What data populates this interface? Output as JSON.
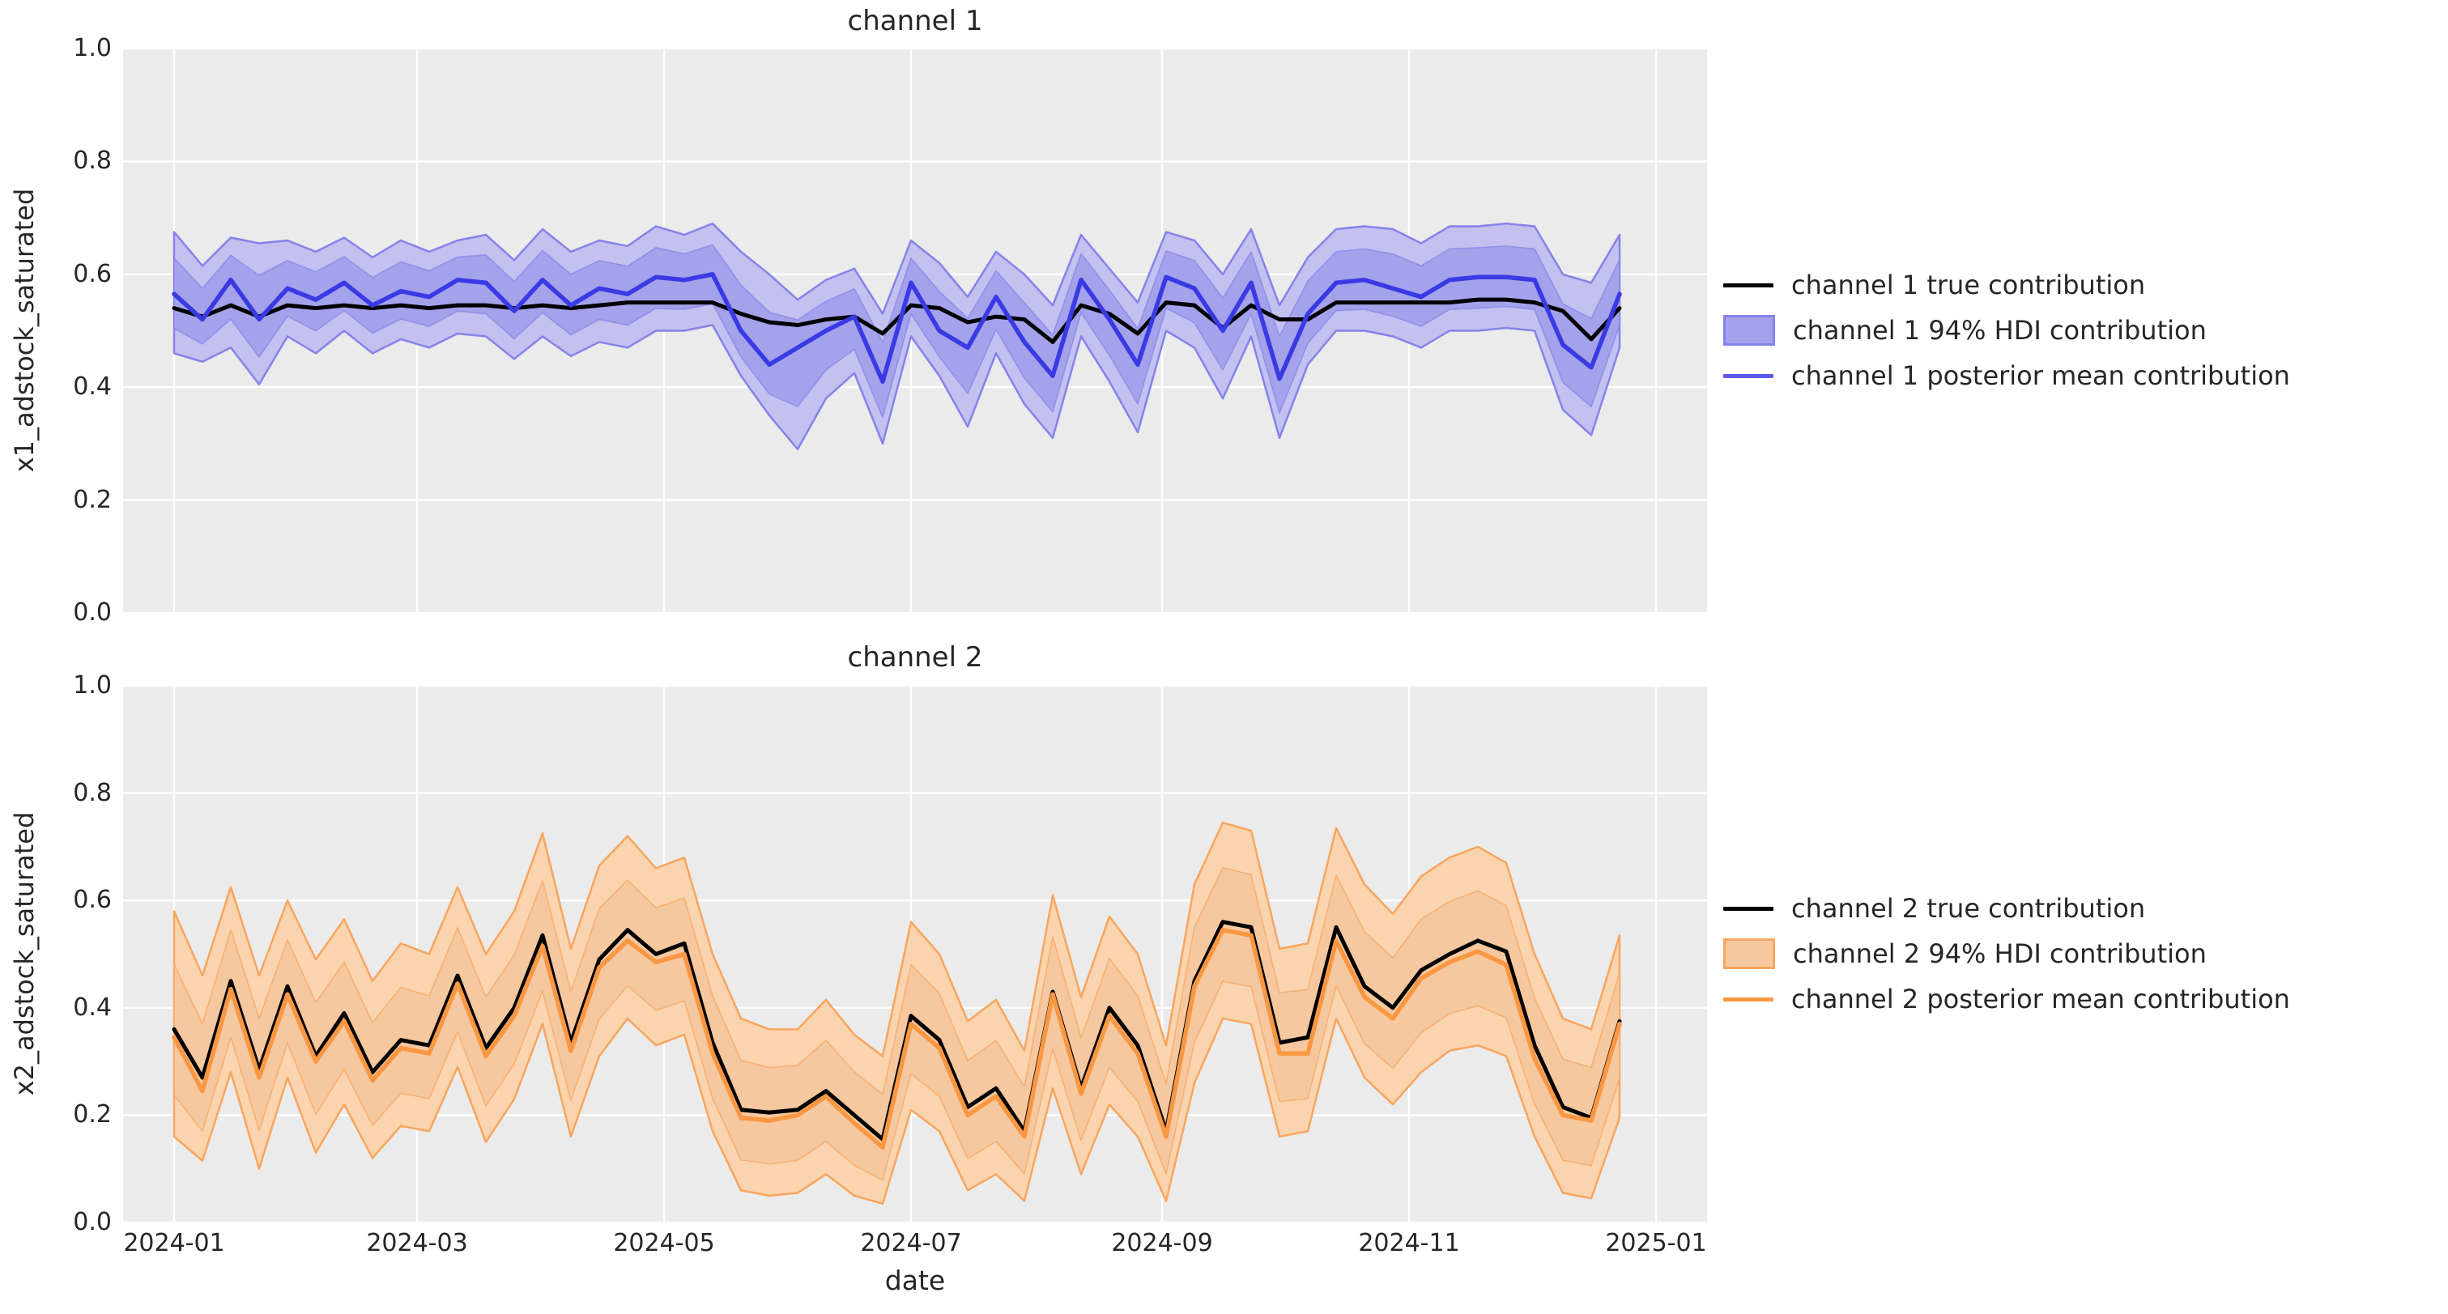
{
  "figure": {
    "xlabel": "date",
    "background": "#ffffff",
    "plot_background": "#ebebeb",
    "grid_color": "#ffffff",
    "text_color": "#262626",
    "xticks": [
      {
        "label": "2024-01",
        "day": 0
      },
      {
        "label": "2024-03",
        "day": 60
      },
      {
        "label": "2024-05",
        "day": 121
      },
      {
        "label": "2024-07",
        "day": 182
      },
      {
        "label": "2024-09",
        "day": 244
      },
      {
        "label": "2024-11",
        "day": 305
      },
      {
        "label": "2025-01",
        "day": 366
      }
    ]
  },
  "chart_data": [
    {
      "type": "line",
      "title": "channel 1",
      "ylabel": "x1_adstock_saturated",
      "xlabel": "date",
      "ylim": [
        0.0,
        1.0
      ],
      "yticks": [
        "0.0",
        "0.2",
        "0.4",
        "0.6",
        "0.8",
        "1.0"
      ],
      "grid": true,
      "legend_position": "right-outside",
      "x_dates": [
        "2024-01-01",
        "2024-01-08",
        "2024-01-15",
        "2024-01-22",
        "2024-01-29",
        "2024-02-05",
        "2024-02-12",
        "2024-02-19",
        "2024-02-26",
        "2024-03-04",
        "2024-03-11",
        "2024-03-18",
        "2024-03-25",
        "2024-04-01",
        "2024-04-08",
        "2024-04-15",
        "2024-04-22",
        "2024-04-29",
        "2024-05-06",
        "2024-05-13",
        "2024-05-20",
        "2024-05-27",
        "2024-06-03",
        "2024-06-10",
        "2024-06-17",
        "2024-06-24",
        "2024-07-01",
        "2024-07-08",
        "2024-07-15",
        "2024-07-22",
        "2024-07-29",
        "2024-08-05",
        "2024-08-12",
        "2024-08-19",
        "2024-08-26",
        "2024-09-02",
        "2024-09-09",
        "2024-09-16",
        "2024-09-23",
        "2024-09-30",
        "2024-10-07",
        "2024-10-14",
        "2024-10-21",
        "2024-10-28",
        "2024-11-04",
        "2024-11-11",
        "2024-11-18",
        "2024-11-25",
        "2024-12-02",
        "2024-12-09",
        "2024-12-16",
        "2024-12-23"
      ],
      "series": [
        {
          "name": "channel 1 true contribution",
          "color": "#000000",
          "values": [
            0.54,
            0.525,
            0.545,
            0.525,
            0.545,
            0.54,
            0.545,
            0.54,
            0.545,
            0.54,
            0.545,
            0.545,
            0.54,
            0.545,
            0.54,
            0.545,
            0.55,
            0.55,
            0.55,
            0.55,
            0.53,
            0.515,
            0.51,
            0.52,
            0.525,
            0.495,
            0.545,
            0.54,
            0.515,
            0.525,
            0.52,
            0.48,
            0.545,
            0.53,
            0.495,
            0.55,
            0.545,
            0.505,
            0.545,
            0.52,
            0.52,
            0.55,
            0.55,
            0.55,
            0.55,
            0.55,
            0.555,
            0.555,
            0.55,
            0.535,
            0.485,
            0.54
          ]
        },
        {
          "name": "channel 1 posterior mean contribution",
          "color": "#3a3ae4",
          "values": [
            0.565,
            0.52,
            0.59,
            0.52,
            0.575,
            0.555,
            0.585,
            0.545,
            0.57,
            0.56,
            0.59,
            0.585,
            0.535,
            0.59,
            0.545,
            0.575,
            0.565,
            0.595,
            0.59,
            0.6,
            0.5,
            0.44,
            0.47,
            0.5,
            0.525,
            0.41,
            0.585,
            0.5,
            0.47,
            0.56,
            0.48,
            0.42,
            0.59,
            0.52,
            0.44,
            0.595,
            0.575,
            0.5,
            0.585,
            0.415,
            0.53,
            0.585,
            0.59,
            0.575,
            0.56,
            0.59,
            0.595,
            0.595,
            0.59,
            0.475,
            0.435,
            0.565
          ]
        }
      ],
      "band": {
        "name": "channel 1 94% HDI contribution",
        "fill_outer": "#c2c1f0",
        "fill_inner": "#a3a2ea",
        "edge": "#8583ea",
        "inner_ratio": 0.58,
        "upper": [
          0.675,
          0.615,
          0.665,
          0.655,
          0.66,
          0.64,
          0.665,
          0.63,
          0.66,
          0.64,
          0.66,
          0.67,
          0.625,
          0.68,
          0.64,
          0.66,
          0.65,
          0.685,
          0.67,
          0.69,
          0.64,
          0.6,
          0.555,
          0.59,
          0.61,
          0.53,
          0.66,
          0.62,
          0.56,
          0.64,
          0.6,
          0.545,
          0.67,
          0.61,
          0.55,
          0.675,
          0.66,
          0.6,
          0.68,
          0.545,
          0.63,
          0.68,
          0.685,
          0.68,
          0.655,
          0.685,
          0.685,
          0.69,
          0.685,
          0.6,
          0.585,
          0.67
        ],
        "lower": [
          0.46,
          0.445,
          0.47,
          0.405,
          0.49,
          0.46,
          0.5,
          0.46,
          0.485,
          0.47,
          0.495,
          0.49,
          0.45,
          0.49,
          0.455,
          0.48,
          0.47,
          0.5,
          0.5,
          0.51,
          0.42,
          0.35,
          0.29,
          0.38,
          0.425,
          0.3,
          0.49,
          0.42,
          0.33,
          0.46,
          0.37,
          0.31,
          0.49,
          0.41,
          0.32,
          0.5,
          0.47,
          0.38,
          0.49,
          0.31,
          0.44,
          0.5,
          0.5,
          0.49,
          0.47,
          0.5,
          0.5,
          0.505,
          0.5,
          0.36,
          0.315,
          0.47
        ]
      },
      "legend": [
        {
          "label": "channel 1 true contribution",
          "type": "line",
          "color": "#000000"
        },
        {
          "label": "channel 1 94% HDI contribution",
          "type": "patch",
          "fill": "#a3a2ea",
          "edge": "#8583ea"
        },
        {
          "label": "channel 1 posterior mean contribution",
          "type": "line",
          "color": "#5a5aee"
        }
      ]
    },
    {
      "type": "line",
      "title": "channel 2",
      "ylabel": "x2_adstock_saturated",
      "xlabel": "date",
      "ylim": [
        0.0,
        1.0
      ],
      "yticks": [
        "0.0",
        "0.2",
        "0.4",
        "0.6",
        "0.8",
        "1.0"
      ],
      "grid": true,
      "legend_position": "right-outside",
      "x_dates": [
        "2024-01-01",
        "2024-01-08",
        "2024-01-15",
        "2024-01-22",
        "2024-01-29",
        "2024-02-05",
        "2024-02-12",
        "2024-02-19",
        "2024-02-26",
        "2024-03-04",
        "2024-03-11",
        "2024-03-18",
        "2024-03-25",
        "2024-04-01",
        "2024-04-08",
        "2024-04-15",
        "2024-04-22",
        "2024-04-29",
        "2024-05-06",
        "2024-05-13",
        "2024-05-20",
        "2024-05-27",
        "2024-06-03",
        "2024-06-10",
        "2024-06-17",
        "2024-06-24",
        "2024-07-01",
        "2024-07-08",
        "2024-07-15",
        "2024-07-22",
        "2024-07-29",
        "2024-08-05",
        "2024-08-12",
        "2024-08-19",
        "2024-08-26",
        "2024-09-02",
        "2024-09-09",
        "2024-09-16",
        "2024-09-23",
        "2024-09-30",
        "2024-10-07",
        "2024-10-14",
        "2024-10-21",
        "2024-10-28",
        "2024-11-04",
        "2024-11-11",
        "2024-11-18",
        "2024-11-25",
        "2024-12-02",
        "2024-12-09",
        "2024-12-16",
        "2024-12-23"
      ],
      "series": [
        {
          "name": "channel 2 true contribution",
          "color": "#000000",
          "values": [
            0.36,
            0.27,
            0.45,
            0.285,
            0.44,
            0.31,
            0.39,
            0.28,
            0.34,
            0.33,
            0.46,
            0.325,
            0.4,
            0.535,
            0.335,
            0.49,
            0.545,
            0.5,
            0.52,
            0.335,
            0.21,
            0.205,
            0.21,
            0.245,
            0.2,
            0.155,
            0.385,
            0.34,
            0.215,
            0.25,
            0.17,
            0.43,
            0.25,
            0.4,
            0.33,
            0.17,
            0.45,
            0.56,
            0.55,
            0.335,
            0.345,
            0.55,
            0.44,
            0.4,
            0.47,
            0.5,
            0.525,
            0.505,
            0.33,
            0.215,
            0.195,
            0.375
          ]
        },
        {
          "name": "channel 2 posterior mean contribution",
          "color": "#fa9743",
          "values": [
            0.345,
            0.245,
            0.435,
            0.27,
            0.425,
            0.3,
            0.375,
            0.265,
            0.325,
            0.315,
            0.445,
            0.31,
            0.385,
            0.515,
            0.32,
            0.475,
            0.525,
            0.485,
            0.5,
            0.315,
            0.195,
            0.19,
            0.2,
            0.235,
            0.185,
            0.14,
            0.37,
            0.325,
            0.2,
            0.235,
            0.16,
            0.425,
            0.24,
            0.385,
            0.315,
            0.16,
            0.44,
            0.545,
            0.535,
            0.315,
            0.315,
            0.525,
            0.42,
            0.38,
            0.455,
            0.485,
            0.505,
            0.48,
            0.305,
            0.2,
            0.19,
            0.37
          ]
        }
      ],
      "band": {
        "name": "channel 2 94% HDI contribution",
        "fill_outer": "#fad4ae",
        "fill_inner": "#f6c89f",
        "edge": "#f8a55e",
        "inner_ratio": 0.58,
        "upper": [
          0.58,
          0.46,
          0.625,
          0.46,
          0.6,
          0.49,
          0.565,
          0.45,
          0.52,
          0.5,
          0.625,
          0.5,
          0.58,
          0.725,
          0.51,
          0.665,
          0.72,
          0.66,
          0.68,
          0.5,
          0.38,
          0.36,
          0.36,
          0.415,
          0.35,
          0.31,
          0.56,
          0.5,
          0.375,
          0.415,
          0.32,
          0.61,
          0.42,
          0.57,
          0.5,
          0.33,
          0.63,
          0.745,
          0.73,
          0.51,
          0.52,
          0.735,
          0.63,
          0.575,
          0.645,
          0.68,
          0.7,
          0.67,
          0.5,
          0.38,
          0.36,
          0.535
        ],
        "lower": [
          0.16,
          0.115,
          0.28,
          0.1,
          0.27,
          0.13,
          0.22,
          0.12,
          0.18,
          0.17,
          0.29,
          0.15,
          0.23,
          0.37,
          0.16,
          0.31,
          0.38,
          0.33,
          0.35,
          0.17,
          0.06,
          0.05,
          0.055,
          0.09,
          0.05,
          0.035,
          0.21,
          0.17,
          0.06,
          0.09,
          0.04,
          0.25,
          0.09,
          0.22,
          0.16,
          0.04,
          0.26,
          0.38,
          0.37,
          0.16,
          0.17,
          0.38,
          0.27,
          0.22,
          0.28,
          0.32,
          0.33,
          0.31,
          0.16,
          0.055,
          0.045,
          0.195
        ]
      },
      "legend": [
        {
          "label": "channel 2 true contribution",
          "type": "line",
          "color": "#000000"
        },
        {
          "label": "channel 2 94% HDI contribution",
          "type": "patch",
          "fill": "#f6c89f",
          "edge": "#f8a55e"
        },
        {
          "label": "channel 2 posterior mean contribution",
          "type": "line",
          "color": "#fa9743"
        }
      ]
    }
  ]
}
